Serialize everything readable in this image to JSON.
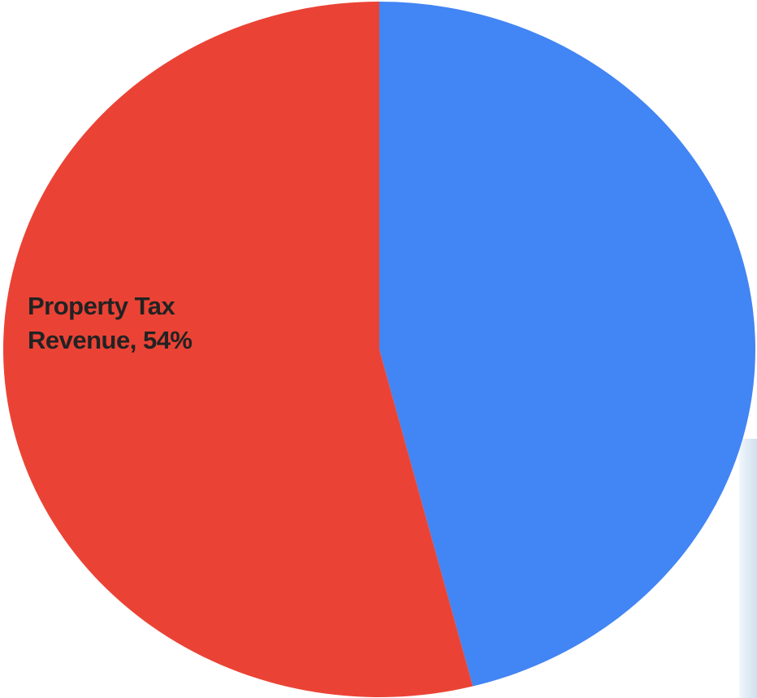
{
  "chart_data": {
    "type": "pie",
    "title": "",
    "slices": [
      {
        "label": "",
        "value": 46,
        "color": "#4285f4",
        "display_label": ""
      },
      {
        "label": "Property Tax Revenue",
        "value": 54,
        "color": "#ea4335",
        "display_label": "Property Tax Revenue, 54%"
      }
    ],
    "start_angle_deg": 0,
    "direction": "clockwise",
    "legend": "none"
  },
  "labels": {
    "property_tax_line1": "Property Tax",
    "property_tax_line2": "Revenue, 54%"
  }
}
